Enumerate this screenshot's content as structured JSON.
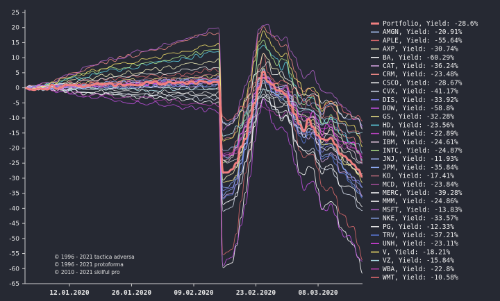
{
  "chart_data": {
    "type": "line",
    "ylim": [
      -65,
      25
    ],
    "yticks": [
      25,
      20,
      15,
      10,
      5,
      0,
      -5,
      -10,
      -15,
      -20,
      -25,
      -30,
      -35,
      -40,
      -45,
      -50,
      -55,
      -60,
      -65
    ],
    "x_start": "2020-01-02",
    "x_end": "2020-03-18",
    "xticks": [
      "12.01.2020",
      "26.01.2020",
      "09.02.2020",
      "23.02.2020",
      "08.03.2020"
    ],
    "grid": false,
    "legend_position": "right",
    "series": [
      {
        "name": "Portfolio, Yield: -28.6%",
        "color": "#f08080",
        "peak": 2,
        "final": -28.6,
        "portfolio": true
      },
      {
        "name": "AMGN, Yield: -20.91%",
        "color": "#9fb8e6",
        "peak": 3,
        "final": -20.91
      },
      {
        "name": "APLE, Yield: -55.64%",
        "color": "#d8686c",
        "peak": 6,
        "final": -55.64
      },
      {
        "name": "AXP, Yield: -30.74%",
        "color": "#f4f1bb",
        "peak": 9,
        "final": -30.74
      },
      {
        "name": "BA, Yield: -60.29%",
        "color": "#ffffff",
        "peak": 0,
        "final": -60.29
      },
      {
        "name": "CAT, Yield: -36.24%",
        "color": "#d9a6e6",
        "peak": 1,
        "final": -36.24
      },
      {
        "name": "CRM, Yield: -23.48%",
        "color": "#f48c88",
        "peak": 19,
        "final": -23.48
      },
      {
        "name": "CSCO, Yield: -28.67%",
        "color": "#ffffff",
        "peak": -3,
        "final": -28.67
      },
      {
        "name": "CVX, Yield: -41.17%",
        "color": "#d0d8e8",
        "peak": -4,
        "final": -41.17
      },
      {
        "name": "DIS, Yield: -33.92%",
        "color": "#7f7fe8",
        "peak": 2,
        "final": -33.92
      },
      {
        "name": "DOW, Yield: -58.8%",
        "color": "#c050e0",
        "peak": -8,
        "final": -58.8
      },
      {
        "name": "GS, Yield: -32.28%",
        "color": "#f5e98a",
        "peak": 4,
        "final": -32.28
      },
      {
        "name": "HD, Yield: -23.56%",
        "color": "#5fd6e8",
        "peak": 12,
        "final": -23.56
      },
      {
        "name": "HON, Yield: -22.89%",
        "color": "#b040b8",
        "peak": 3,
        "final": -22.89
      },
      {
        "name": "IBM, Yield: -24.61%",
        "color": "#e8c8e0",
        "peak": 2,
        "final": -24.61
      },
      {
        "name": "INTC, Yield: -24.87%",
        "color": "#b2e68a",
        "peak": 13,
        "final": -24.87
      },
      {
        "name": "JNJ, Yield: -11.93%",
        "color": "#9ab0f0",
        "peak": 1,
        "final": -11.93
      },
      {
        "name": "JPM, Yield: -35.84%",
        "color": "#8ca8f0",
        "peak": 3,
        "final": -35.84
      },
      {
        "name": "KO, Yield: -17.41%",
        "color": "#b86878",
        "peak": 4,
        "final": -17.41
      },
      {
        "name": "MCD, Yield: -23.84%",
        "color": "#a84e9e",
        "peak": 2,
        "final": -23.84
      },
      {
        "name": "MERC, Yield: -39.28%",
        "color": "#ffffff",
        "peak": -5,
        "final": -39.28
      },
      {
        "name": "MMM, Yield: -24.86%",
        "color": "#e0e0e0",
        "peak": -2,
        "final": -24.86
      },
      {
        "name": "MSFT, Yield: -13.83%",
        "color": "#b060c8",
        "peak": 20,
        "final": -13.83
      },
      {
        "name": "NKE, Yield: -33.57%",
        "color": "#88a4e8",
        "peak": 3,
        "final": -33.57
      },
      {
        "name": "PG, Yield: -12.33%",
        "color": "#f0f0f0",
        "peak": 7,
        "final": -12.33
      },
      {
        "name": "TRV, Yield: -37.21%",
        "color": "#5a78d8",
        "peak": 1,
        "final": -37.21
      },
      {
        "name": "UNH, Yield: -23.11%",
        "color": "#e040e8",
        "peak": 2,
        "final": -23.11
      },
      {
        "name": "V, Yield: -18.21%",
        "color": "#f5e26a",
        "peak": 15,
        "final": -18.21
      },
      {
        "name": "VZ, Yield: -15.84%",
        "color": "#aee0ea",
        "peak": -1,
        "final": -15.84
      },
      {
        "name": "WBA, Yield: -22.8%",
        "color": "#b03ea8",
        "peak": -6,
        "final": -22.8
      },
      {
        "name": "WMT, Yield: -10.58%",
        "color": "#e86a70",
        "peak": 3,
        "final": -10.58
      }
    ]
  },
  "copyright": [
    "© 1996 - 2021 tactica adversa",
    "© 1996 - 2021 protoforma",
    "© 2010 - 2021 skilful pro"
  ]
}
